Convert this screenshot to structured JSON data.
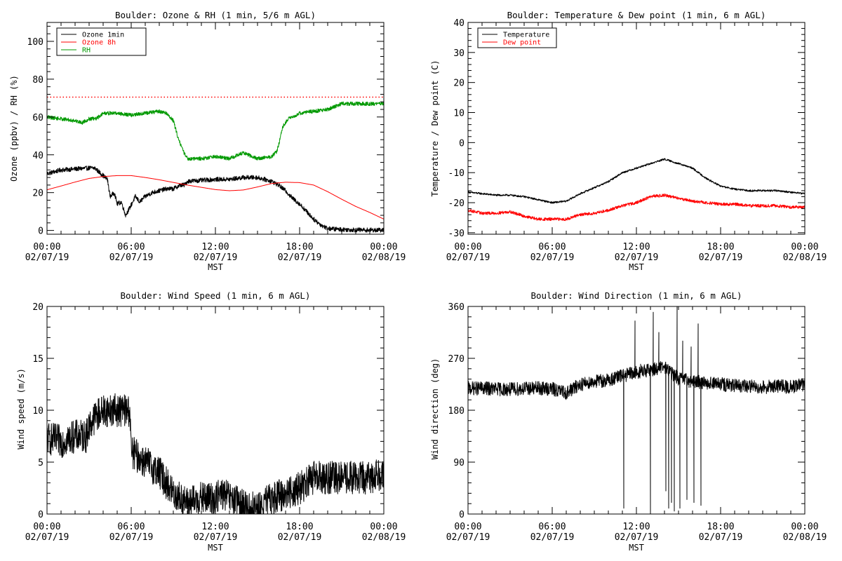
{
  "chart_data": [
    {
      "type": "line",
      "title": "Boulder: Ozone & RH (1 min, 5/6 m AGL)",
      "xlabel": "MST",
      "ylabel": "Ozone (ppbv) / RH (%)",
      "xlim": [
        "02/07/19 00:00",
        "02/08/19 00:00"
      ],
      "ylim": [
        -2,
        110
      ],
      "yticks": [
        0,
        20,
        40,
        60,
        80,
        100
      ],
      "xtick_labels": [
        {
          "time": "00:00",
          "date": "02/07/19"
        },
        {
          "time": "06:00",
          "date": "02/07/19"
        },
        {
          "time": "12:00",
          "date": "02/07/19"
        },
        {
          "time": "18:00",
          "date": "02/07/19"
        },
        {
          "time": "00:00",
          "date": "02/08/19"
        }
      ],
      "legend": {
        "placement": "top-left",
        "entries": [
          "Ozone 1min",
          "Ozone 8h",
          "RH"
        ]
      },
      "reference_line": {
        "value": 70.5,
        "color": "#ff0000",
        "style": "dotted"
      },
      "series": [
        {
          "name": "Ozone 1min",
          "color": "#000000",
          "noise": 1.2,
          "points": [
            [
              0,
              30
            ],
            [
              0.5,
              31
            ],
            [
              1,
              32
            ],
            [
              2,
              32.5
            ],
            [
              3,
              33
            ],
            [
              3.4,
              33
            ],
            [
              3.7,
              31
            ],
            [
              4,
              29
            ],
            [
              4.3,
              27
            ],
            [
              4.5,
              18
            ],
            [
              4.8,
              20
            ],
            [
              5,
              14
            ],
            [
              5.3,
              15
            ],
            [
              5.6,
              8
            ],
            [
              5.9,
              12
            ],
            [
              6.3,
              18
            ],
            [
              6.6,
              15
            ],
            [
              7,
              18
            ],
            [
              7.5,
              20
            ],
            [
              8,
              21
            ],
            [
              8.5,
              22
            ],
            [
              9,
              22
            ],
            [
              9.5,
              24
            ],
            [
              9.8,
              24
            ],
            [
              10,
              26
            ],
            [
              11,
              26.5
            ],
            [
              12,
              27
            ],
            [
              13,
              27
            ],
            [
              14,
              28
            ],
            [
              15,
              28
            ],
            [
              16,
              26
            ],
            [
              16.5,
              24
            ],
            [
              17,
              21
            ],
            [
              17.5,
              17
            ],
            [
              18,
              14
            ],
            [
              18.5,
              10
            ],
            [
              19,
              6
            ],
            [
              19.5,
              3
            ],
            [
              20,
              1
            ],
            [
              21,
              0.5
            ],
            [
              22,
              0.3
            ],
            [
              23,
              0.2
            ],
            [
              24,
              0.2
            ]
          ]
        },
        {
          "name": "Ozone 8h",
          "color": "#ff0000",
          "noise": 0,
          "points": [
            [
              0,
              21.5
            ],
            [
              1,
              23.5
            ],
            [
              2,
              25.6
            ],
            [
              3,
              27.5
            ],
            [
              4,
              28.5
            ],
            [
              5,
              29
            ],
            [
              6,
              29
            ],
            [
              7,
              28
            ],
            [
              8,
              26.8
            ],
            [
              9,
              25.4
            ],
            [
              10,
              24
            ],
            [
              11,
              22.8
            ],
            [
              12,
              21.6
            ],
            [
              13,
              21
            ],
            [
              14,
              21.4
            ],
            [
              15,
              23
            ],
            [
              16,
              24.8
            ],
            [
              17,
              25.5
            ],
            [
              18,
              25.3
            ],
            [
              19,
              24
            ],
            [
              20,
              20.5
            ],
            [
              21,
              16.5
            ],
            [
              22,
              12.7
            ],
            [
              23,
              9.5
            ],
            [
              24,
              6
            ]
          ]
        },
        {
          "name": "RH",
          "color": "#009900",
          "noise": 1.0,
          "points": [
            [
              0,
              60
            ],
            [
              1,
              59
            ],
            [
              2,
              58
            ],
            [
              2.5,
              57
            ],
            [
              3,
              59
            ],
            [
              3.5,
              59
            ],
            [
              4,
              62
            ],
            [
              5,
              62
            ],
            [
              6,
              61
            ],
            [
              7,
              62
            ],
            [
              8,
              63
            ],
            [
              8.5,
              62
            ],
            [
              9,
              58
            ],
            [
              9.3,
              50
            ],
            [
              9.7,
              42
            ],
            [
              10,
              38
            ],
            [
              11,
              38
            ],
            [
              12,
              39
            ],
            [
              13,
              38
            ],
            [
              14,
              41
            ],
            [
              15,
              38
            ],
            [
              16,
              39
            ],
            [
              16.4,
              42
            ],
            [
              16.8,
              55
            ],
            [
              17.2,
              59
            ],
            [
              18,
              62
            ],
            [
              19,
              63
            ],
            [
              20,
              64
            ],
            [
              21,
              67
            ],
            [
              22,
              67
            ],
            [
              23,
              67
            ],
            [
              24,
              67
            ]
          ]
        }
      ]
    },
    {
      "type": "line",
      "title": "Boulder: Temperature & Dew point (1 min, 6 m AGL)",
      "xlabel": "MST",
      "ylabel": "Temperature / Dew point (C)",
      "xlim": [
        "02/07/19 00:00",
        "02/08/19 00:00"
      ],
      "ylim": [
        -30.5,
        40
      ],
      "yticks": [
        -30,
        -20,
        -10,
        0,
        10,
        20,
        30,
        40
      ],
      "xtick_labels": [
        {
          "time": "00:00",
          "date": "02/07/19"
        },
        {
          "time": "06:00",
          "date": "02/07/19"
        },
        {
          "time": "12:00",
          "date": "02/07/19"
        },
        {
          "time": "18:00",
          "date": "02/07/19"
        },
        {
          "time": "00:00",
          "date": "02/08/19"
        }
      ],
      "legend": {
        "placement": "top-left",
        "entries": [
          "Temperature",
          "Dew point"
        ]
      },
      "series": [
        {
          "name": "Temperature",
          "color": "#000000",
          "noise": 0.3,
          "points": [
            [
              0,
              -16.5
            ],
            [
              1,
              -17
            ],
            [
              2,
              -17.5
            ],
            [
              3,
              -17.5
            ],
            [
              4,
              -18
            ],
            [
              5,
              -19
            ],
            [
              6,
              -20
            ],
            [
              7,
              -19.5
            ],
            [
              8,
              -17
            ],
            [
              9,
              -15
            ],
            [
              10,
              -13
            ],
            [
              11,
              -10
            ],
            [
              12,
              -8.5
            ],
            [
              13,
              -7
            ],
            [
              14,
              -5.5
            ],
            [
              15,
              -7
            ],
            [
              16,
              -8.5
            ],
            [
              17,
              -12
            ],
            [
              18,
              -14.5
            ],
            [
              19,
              -15.5
            ],
            [
              20,
              -16
            ],
            [
              21,
              -16
            ],
            [
              22,
              -16
            ],
            [
              23,
              -16.5
            ],
            [
              24,
              -17
            ]
          ]
        },
        {
          "name": "Dew point",
          "color": "#ff0000",
          "noise": 0.5,
          "points": [
            [
              0,
              -22.5
            ],
            [
              1,
              -23.5
            ],
            [
              2,
              -23.5
            ],
            [
              3,
              -23
            ],
            [
              4,
              -24.5
            ],
            [
              5,
              -25.5
            ],
            [
              6,
              -25.5
            ],
            [
              7,
              -25.5
            ],
            [
              8,
              -24
            ],
            [
              9,
              -23.5
            ],
            [
              10,
              -22.5
            ],
            [
              11,
              -21
            ],
            [
              12,
              -20
            ],
            [
              12.5,
              -19
            ],
            [
              13,
              -18
            ],
            [
              14,
              -17.5
            ],
            [
              15,
              -18.5
            ],
            [
              16,
              -19.5
            ],
            [
              17,
              -20
            ],
            [
              18,
              -20.5
            ],
            [
              19,
              -20.5
            ],
            [
              20,
              -21
            ],
            [
              21,
              -21
            ],
            [
              22,
              -21
            ],
            [
              23,
              -21.5
            ],
            [
              24,
              -21.5
            ]
          ]
        }
      ]
    },
    {
      "type": "line",
      "title": "Boulder: Wind Speed (1 min, 6 m AGL)",
      "xlabel": "MST",
      "ylabel": "Wind speed (m/s)",
      "xlim": [
        "02/07/19 00:00",
        "02/08/19 00:00"
      ],
      "ylim": [
        0,
        20
      ],
      "yticks": [
        0,
        5,
        10,
        15,
        20
      ],
      "xtick_labels": [
        {
          "time": "00:00",
          "date": "02/07/19"
        },
        {
          "time": "06:00",
          "date": "02/07/19"
        },
        {
          "time": "12:00",
          "date": "02/07/19"
        },
        {
          "time": "18:00",
          "date": "02/07/19"
        },
        {
          "time": "00:00",
          "date": "02/08/19"
        }
      ],
      "series": [
        {
          "name": "",
          "color": "#000000",
          "noise": 1.6,
          "points": [
            [
              0,
              7.3
            ],
            [
              1,
              7
            ],
            [
              2,
              7.5
            ],
            [
              2.8,
              7.5
            ],
            [
              3,
              8.5
            ],
            [
              3.5,
              9.5
            ],
            [
              4,
              10
            ],
            [
              5,
              10
            ],
            [
              5.9,
              10
            ],
            [
              6,
              6
            ],
            [
              7,
              5
            ],
            [
              8,
              4
            ],
            [
              9,
              2
            ],
            [
              10,
              1
            ],
            [
              11,
              1.5
            ],
            [
              12,
              1.5
            ],
            [
              12.5,
              2
            ],
            [
              13,
              1.5
            ],
            [
              14,
              0.8
            ],
            [
              15,
              0.5
            ],
            [
              16,
              1.5
            ],
            [
              17,
              2
            ],
            [
              18,
              2.5
            ],
            [
              19,
              3.5
            ],
            [
              20,
              3.5
            ],
            [
              21,
              3.5
            ],
            [
              22,
              3.5
            ],
            [
              23,
              3.5
            ],
            [
              24,
              4
            ]
          ]
        }
      ]
    },
    {
      "type": "line",
      "title": "Boulder: Wind Direction (1 min, 6 m AGL)",
      "xlabel": "MST",
      "ylabel": "Wind direction (deg)",
      "xlim": [
        "02/07/19 00:00",
        "02/08/19 00:00"
      ],
      "ylim": [
        0,
        360
      ],
      "yticks": [
        0,
        90,
        180,
        270,
        360
      ],
      "xtick_labels": [
        {
          "time": "00:00",
          "date": "02/07/19"
        },
        {
          "time": "06:00",
          "date": "02/07/19"
        },
        {
          "time": "12:00",
          "date": "02/07/19"
        },
        {
          "time": "18:00",
          "date": "02/07/19"
        },
        {
          "time": "00:00",
          "date": "02/08/19"
        }
      ],
      "series": [
        {
          "name": "",
          "color": "#000000",
          "noise": 12,
          "points": [
            [
              0,
              218
            ],
            [
              1,
              218
            ],
            [
              2,
              217
            ],
            [
              3,
              216
            ],
            [
              4,
              218
            ],
            [
              5,
              218
            ],
            [
              6,
              217
            ],
            [
              7,
              210
            ],
            [
              8,
              225
            ],
            [
              9,
              230
            ],
            [
              10,
              232
            ],
            [
              11,
              240
            ],
            [
              12,
              245
            ],
            [
              13,
              250
            ],
            [
              14,
              255
            ],
            [
              15,
              235
            ],
            [
              16,
              230
            ],
            [
              17,
              228
            ],
            [
              18,
              225
            ],
            [
              19,
              222
            ],
            [
              20,
              222
            ],
            [
              21,
              220
            ],
            [
              22,
              222
            ],
            [
              23,
              220
            ],
            [
              24,
              225
            ]
          ],
          "spikes": [
            [
              11.1,
              10
            ],
            [
              11.9,
              335
            ],
            [
              12.3,
              260
            ],
            [
              13.0,
              5
            ],
            [
              13.2,
              350
            ],
            [
              13.6,
              315
            ],
            [
              14.1,
              40
            ],
            [
              14.3,
              10
            ],
            [
              14.5,
              20
            ],
            [
              14.7,
              5
            ],
            [
              14.9,
              360
            ],
            [
              15.1,
              10
            ],
            [
              15.3,
              300
            ],
            [
              15.6,
              25
            ],
            [
              15.9,
              290
            ],
            [
              16.1,
              20
            ],
            [
              16.4,
              330
            ],
            [
              16.6,
              15
            ]
          ]
        }
      ]
    }
  ]
}
